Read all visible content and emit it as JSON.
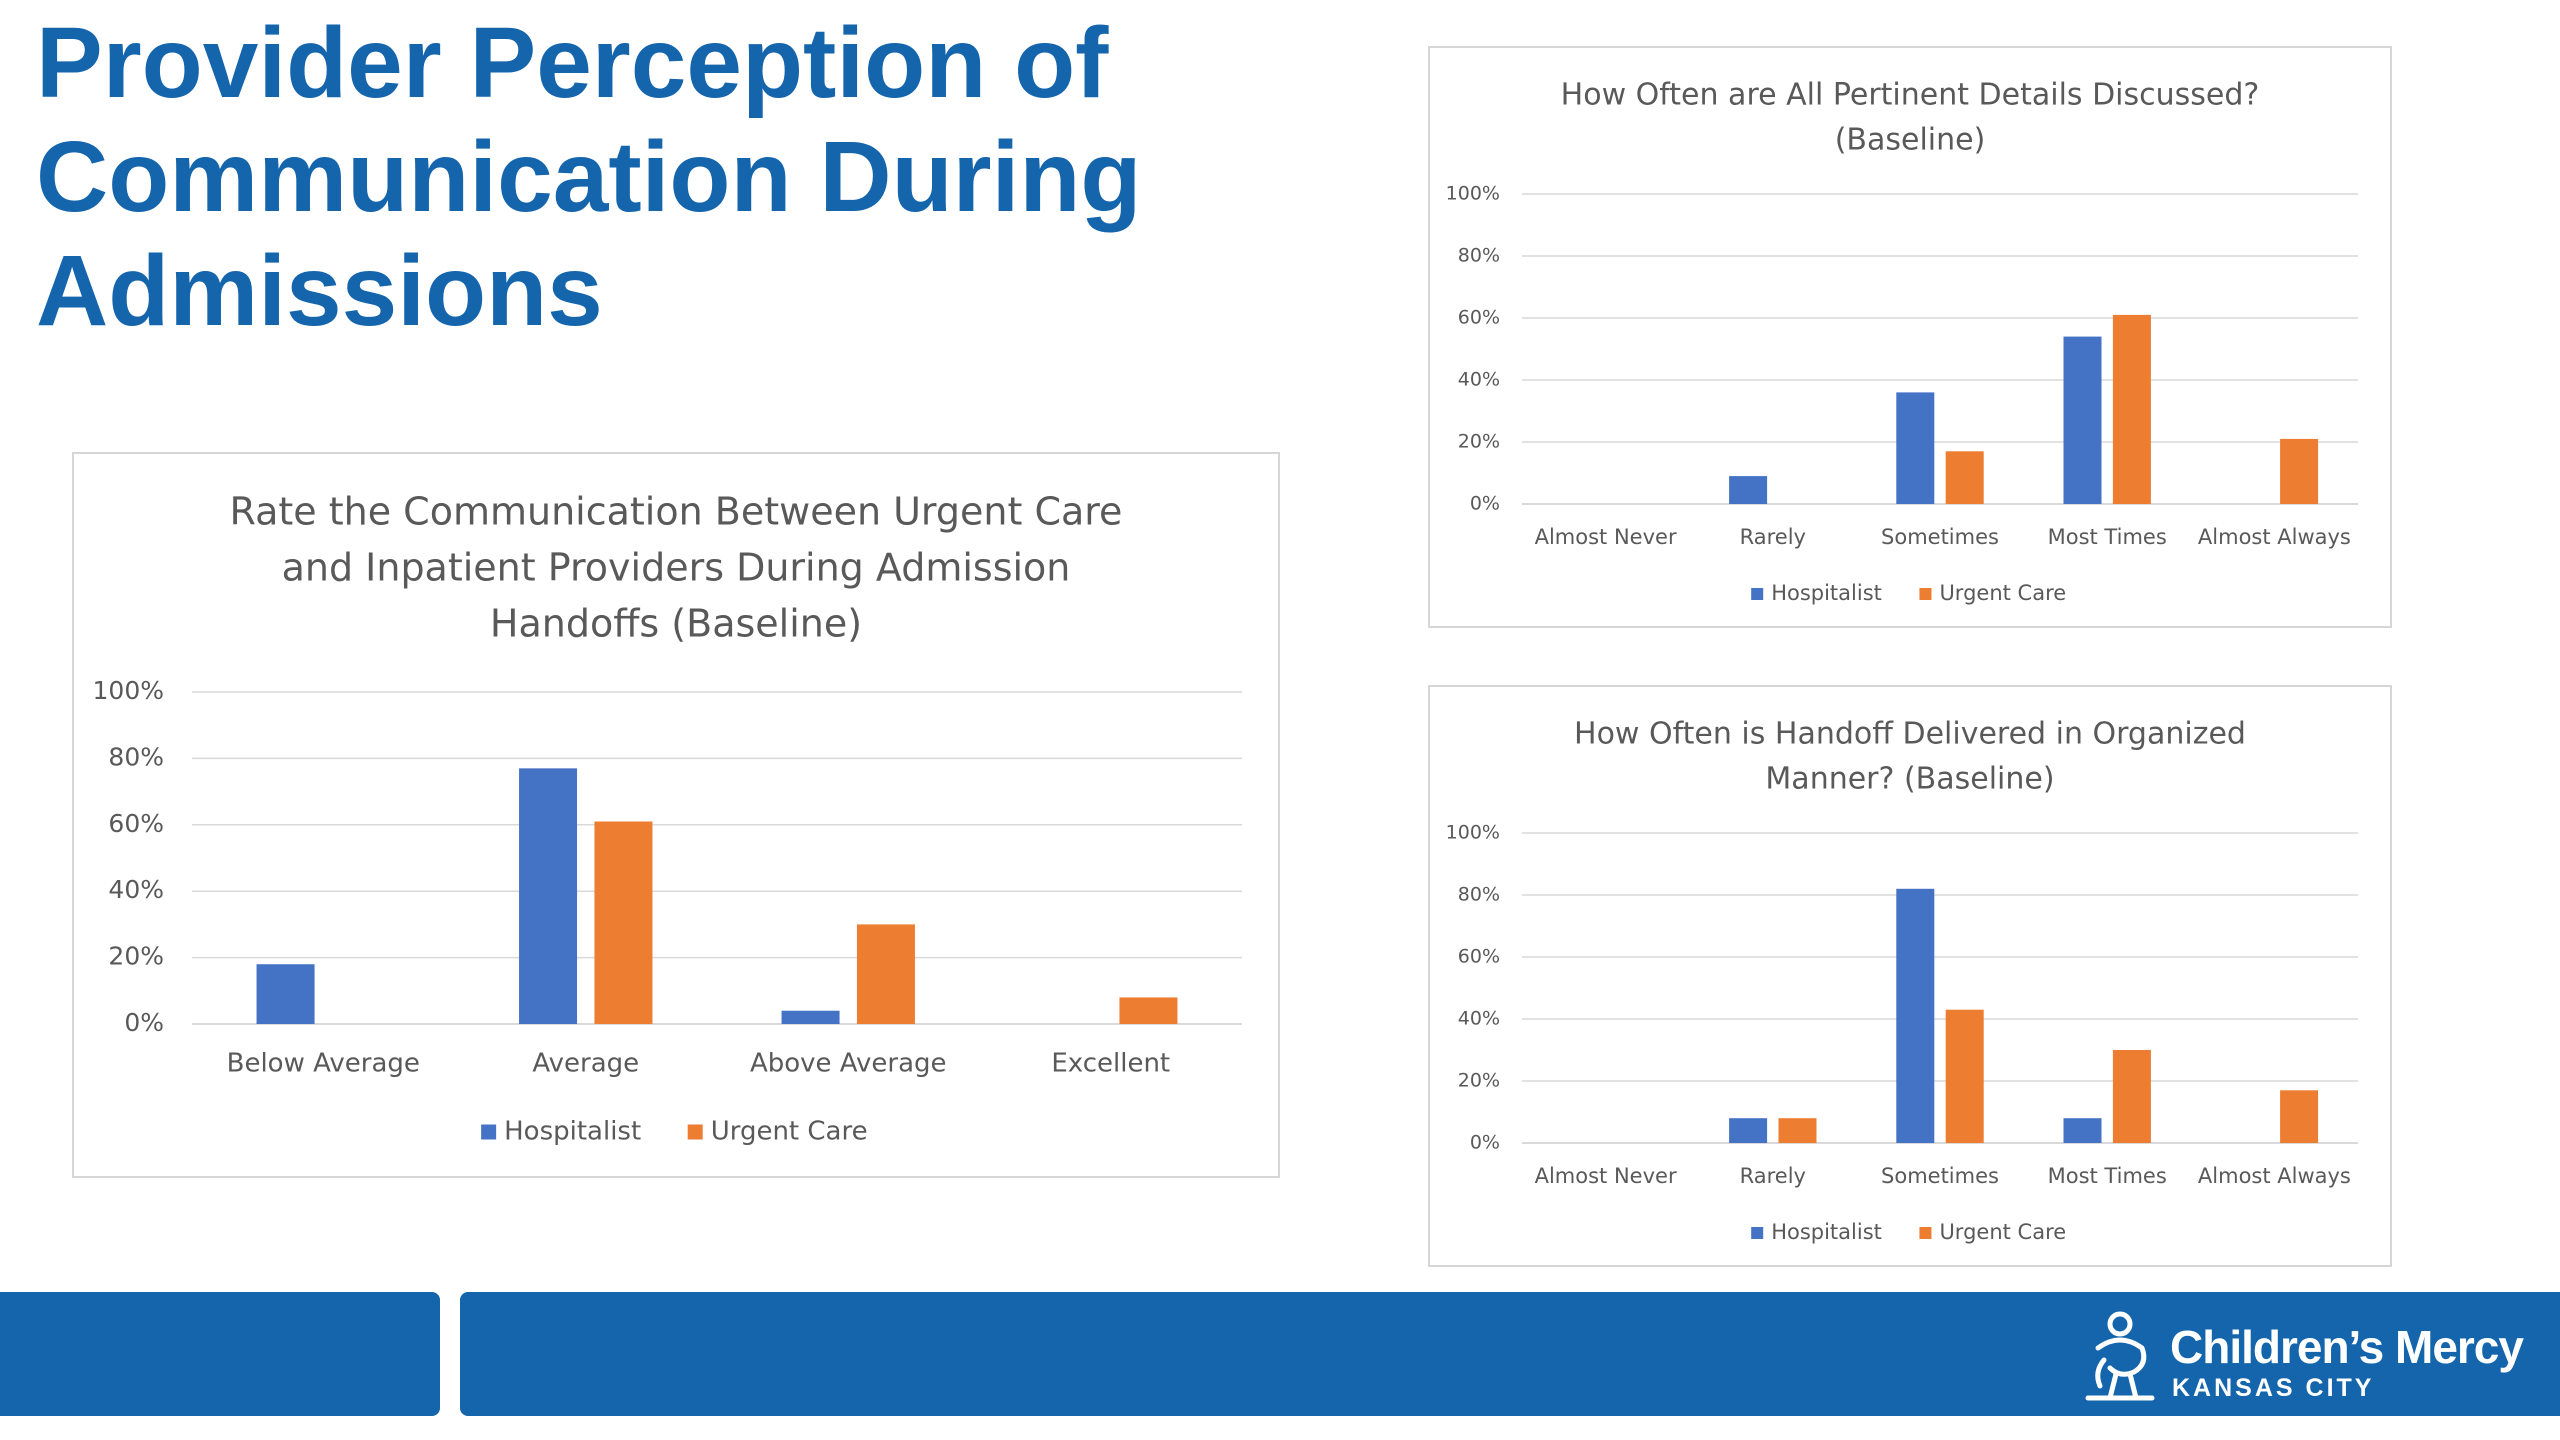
{
  "slide": {
    "title_lines": [
      "Provider Perception of",
      "Communication During",
      "Admissions"
    ]
  },
  "brand": {
    "name": "Children’s Mercy",
    "city": "KANSAS CITY",
    "icon": "childrens-mercy-logo-icon"
  },
  "colors": {
    "title": "#1565ad",
    "footer_bar": "#1565ad",
    "hospitalist": "#4472c4",
    "urgent_care": "#ed7d31",
    "grid": "#d9d9d9",
    "text": "#595959"
  },
  "chart_data": [
    {
      "id": "rate-communication",
      "type": "bar",
      "title_lines": [
        "Rate the Communication Between Urgent Care",
        "and Inpatient Providers During Admission",
        "Handoffs (Baseline)"
      ],
      "categories": [
        "Below Average",
        "Average",
        "Above Average",
        "Excellent"
      ],
      "series": [
        {
          "name": "Hospitalist",
          "values": [
            18,
            77,
            4,
            0
          ]
        },
        {
          "name": "Urgent Care",
          "values": [
            0,
            61,
            30,
            8
          ]
        }
      ],
      "ylim": [
        0,
        100
      ],
      "yticks": [
        "0%",
        "20%",
        "40%",
        "60%",
        "80%",
        "100%"
      ],
      "grid": true,
      "legend_position": "bottom"
    },
    {
      "id": "pertinent-details",
      "type": "bar",
      "title_lines": [
        "How Often are All Pertinent Details Discussed?",
        "(Baseline)"
      ],
      "categories": [
        "Almost Never",
        "Rarely",
        "Sometimes",
        "Most Times",
        "Almost Always"
      ],
      "series": [
        {
          "name": "Hospitalist",
          "values": [
            0,
            9,
            36,
            54,
            0
          ]
        },
        {
          "name": "Urgent Care",
          "values": [
            0,
            0,
            17,
            61,
            21
          ]
        }
      ],
      "ylim": [
        0,
        100
      ],
      "yticks": [
        "0%",
        "20%",
        "40%",
        "60%",
        "80%",
        "100%"
      ],
      "grid": true,
      "legend_position": "bottom"
    },
    {
      "id": "organized-handoff",
      "type": "bar",
      "title_lines": [
        "How Often is Handoff Delivered in Organized",
        "Manner? (Baseline)"
      ],
      "categories": [
        "Almost Never",
        "Rarely",
        "Sometimes",
        "Most Times",
        "Almost Always"
      ],
      "series": [
        {
          "name": "Hospitalist",
          "values": [
            0,
            8,
            82,
            8,
            0
          ]
        },
        {
          "name": "Urgent Care",
          "values": [
            0,
            8,
            43,
            30,
            17
          ]
        }
      ],
      "ylim": [
        0,
        100
      ],
      "yticks": [
        "0%",
        "20%",
        "40%",
        "60%",
        "80%",
        "100%"
      ],
      "grid": true,
      "legend_position": "bottom"
    }
  ]
}
